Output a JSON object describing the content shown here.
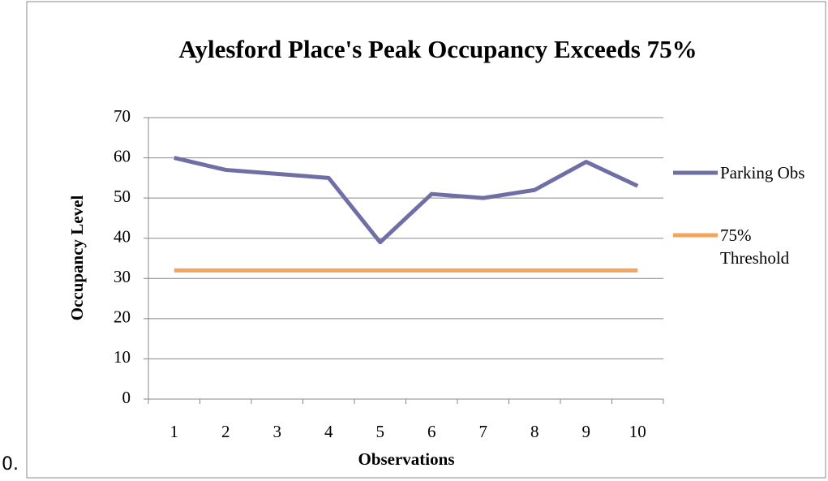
{
  "list_marker": "0.",
  "chart_data": {
    "type": "line",
    "title": "Aylesford Place's Peak Occupancy Exceeds 75%",
    "x_label": "Observations",
    "y_label": "Occupancy Level",
    "categories": [
      "1",
      "2",
      "3",
      "4",
      "5",
      "6",
      "7",
      "8",
      "9",
      "10"
    ],
    "series": [
      {
        "name": "Parking Obs",
        "color": "#6f6fa6",
        "values": [
          60,
          57,
          56,
          55,
          39,
          51,
          50,
          52,
          59,
          53
        ]
      },
      {
        "name": "75% Threshold",
        "color": "#f5a55b",
        "values": [
          32,
          32,
          32,
          32,
          32,
          32,
          32,
          32,
          32,
          32
        ]
      }
    ],
    "ylim": [
      0,
      70
    ],
    "yticks": [
      0,
      10,
      20,
      30,
      40,
      50,
      60,
      70
    ],
    "grid": true,
    "legend": "right"
  }
}
